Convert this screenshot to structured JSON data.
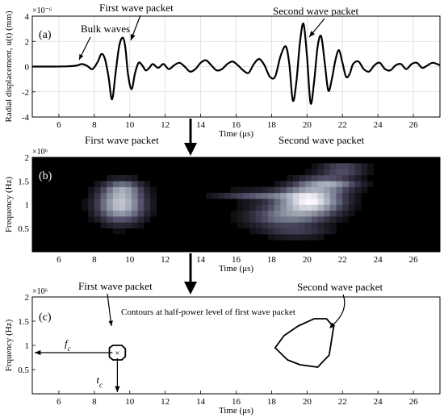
{
  "chart_data": [
    {
      "id": "a",
      "type": "line",
      "panel_label": "(a)",
      "xlabel": "Time (μs)",
      "ylabel": "Radial displacement, u(t) (mm)",
      "y_multiplier": "×10⁻⁶",
      "xlim": [
        4.5,
        27.5
      ],
      "ylim": [
        -4,
        4
      ],
      "xticks": [
        6,
        8,
        10,
        12,
        14,
        16,
        18,
        20,
        22,
        24,
        26
      ],
      "yticks": [
        -4,
        -2,
        0,
        2,
        4
      ],
      "grid": true,
      "annotations": [
        "Bulk waves",
        "First wave packet",
        "Second wave packet"
      ],
      "series": [
        {
          "x": [
            4.5,
            5.5,
            6.5,
            7.0,
            7.3,
            7.6,
            7.9,
            8.2,
            8.4,
            8.6,
            8.8,
            9.0,
            9.2,
            9.4,
            9.6,
            9.75,
            9.9,
            10.1,
            10.3,
            10.5,
            10.7,
            10.9,
            11.1,
            11.3,
            11.6,
            11.9,
            12.2,
            12.5,
            12.8,
            13.1,
            13.4,
            13.7,
            14.0,
            14.3,
            14.6,
            14.9,
            15.2,
            15.5,
            15.8,
            16.1,
            16.4,
            16.7,
            17.0,
            17.3,
            17.6,
            17.9,
            18.2,
            18.5,
            18.8,
            19.0,
            19.2,
            19.4,
            19.6,
            19.8,
            20.0,
            20.2,
            20.4,
            20.6,
            20.8,
            21.0,
            21.2,
            21.4,
            21.6,
            21.8,
            22.0,
            22.2,
            22.4,
            22.6,
            22.9,
            23.2,
            23.5,
            23.8,
            24.1,
            24.4,
            24.7,
            25.0,
            25.3,
            25.6,
            25.9,
            26.2,
            26.5,
            26.8,
            27.1,
            27.5
          ],
          "y": [
            0,
            0,
            0.02,
            0.08,
            0.2,
            0.05,
            -0.2,
            0.4,
            1.0,
            0.6,
            -0.8,
            -2.6,
            -0.5,
            1.6,
            2.3,
            1.5,
            -0.6,
            -1.8,
            -0.5,
            0.3,
            0.1,
            -0.3,
            -0.1,
            0.2,
            -0.1,
            0.2,
            -0.2,
            0.1,
            0.3,
            0,
            -0.4,
            -0.2,
            0.3,
            0.5,
            0.1,
            -0.3,
            -0.2,
            0.2,
            0.4,
            0.1,
            -0.3,
            -0.5,
            0.2,
            0.6,
            0.1,
            -0.8,
            -0.8,
            0.8,
            1.6,
            0.2,
            -2.7,
            -1.2,
            1.9,
            3.4,
            0.8,
            -2.9,
            -1.2,
            1.6,
            2.4,
            0.3,
            -1.9,
            -1.0,
            0.5,
            1.3,
            0.3,
            -0.8,
            -0.6,
            0.2,
            0.4,
            -0.2,
            -0.4,
            0.1,
            0.3,
            -0.2,
            -0.3,
            0.1,
            0.2,
            -0.2,
            0.2,
            0.3,
            -0.1,
            0.1,
            0.3,
            0.1
          ]
        }
      ]
    },
    {
      "id": "b",
      "type": "heatmap",
      "panel_label": "(b)",
      "xlabel": "Time (μs)",
      "ylabel": "Frequency (Hz)",
      "y_multiplier": "×10⁶",
      "xlim": [
        4.5,
        27.5
      ],
      "ylim": [
        0,
        2
      ],
      "xticks": [
        6,
        8,
        10,
        12,
        14,
        16,
        18,
        20,
        22,
        24,
        26
      ],
      "yticks": [
        0.5,
        1,
        1.5,
        2
      ],
      "ytick_labels": [
        "0.5",
        "1",
        "1.5",
        "2"
      ],
      "annotations": [
        "First wave packet",
        "Second wave packet"
      ],
      "colormap": "bone",
      "blobs": [
        {
          "t": 9.5,
          "f": 1.0,
          "st": 0.9,
          "sf": 0.25,
          "amp": 0.8
        },
        {
          "t": 9.6,
          "f": 1.35,
          "st": 0.7,
          "sf": 0.12,
          "amp": 0.35
        },
        {
          "t": 20.2,
          "f": 1.1,
          "st": 1.2,
          "sf": 0.2,
          "amp": 0.95
        },
        {
          "t": 21.3,
          "f": 1.45,
          "st": 1.1,
          "sf": 0.1,
          "amp": 0.55
        },
        {
          "t": 22.0,
          "f": 1.75,
          "st": 0.9,
          "sf": 0.07,
          "amp": 0.45
        },
        {
          "t": 17.2,
          "f": 1.2,
          "st": 1.6,
          "sf": 0.07,
          "amp": 0.35
        },
        {
          "t": 18.8,
          "f": 0.75,
          "st": 1.5,
          "sf": 0.18,
          "amp": 0.45
        },
        {
          "t": 19.5,
          "f": 0.4,
          "st": 1.3,
          "sf": 0.08,
          "amp": 0.2
        }
      ]
    },
    {
      "id": "c",
      "type": "line",
      "panel_label": "(c)",
      "xlabel": "Time (μs)",
      "ylabel": "Frquency (Hz)",
      "y_multiplier": "×10⁶",
      "xlim": [
        4.5,
        27.5
      ],
      "ylim": [
        0,
        2
      ],
      "xticks": [
        6,
        8,
        10,
        12,
        14,
        16,
        18,
        20,
        22,
        24,
        26
      ],
      "yticks": [
        0.5,
        1,
        1.5,
        2
      ],
      "ytick_labels": [
        "0.5",
        "1",
        "1.5",
        "2"
      ],
      "annotations": [
        "First wave packet",
        "Second wave packet",
        "Contours at half-power level of first wave packet"
      ],
      "marker": {
        "t": 9.3,
        "f": 0.85,
        "f_label": "f",
        "f_sub": "c",
        "t_label": "t",
        "t_sub": "c"
      },
      "series": [
        {
          "name": "first contour",
          "x": [
            8.85,
            9.05,
            9.55,
            9.75,
            9.75,
            9.55,
            9.05,
            8.85,
            8.85
          ],
          "y": [
            0.95,
            1.0,
            1.0,
            0.93,
            0.77,
            0.7,
            0.7,
            0.76,
            0.95
          ]
        },
        {
          "name": "second contour",
          "x": [
            18.2,
            18.7,
            19.5,
            20.4,
            21.1,
            21.5,
            21.25,
            20.6,
            19.6,
            18.9,
            18.2
          ],
          "y": [
            0.95,
            1.2,
            1.4,
            1.55,
            1.55,
            1.38,
            0.8,
            0.55,
            0.6,
            0.7,
            0.95
          ]
        }
      ]
    }
  ]
}
